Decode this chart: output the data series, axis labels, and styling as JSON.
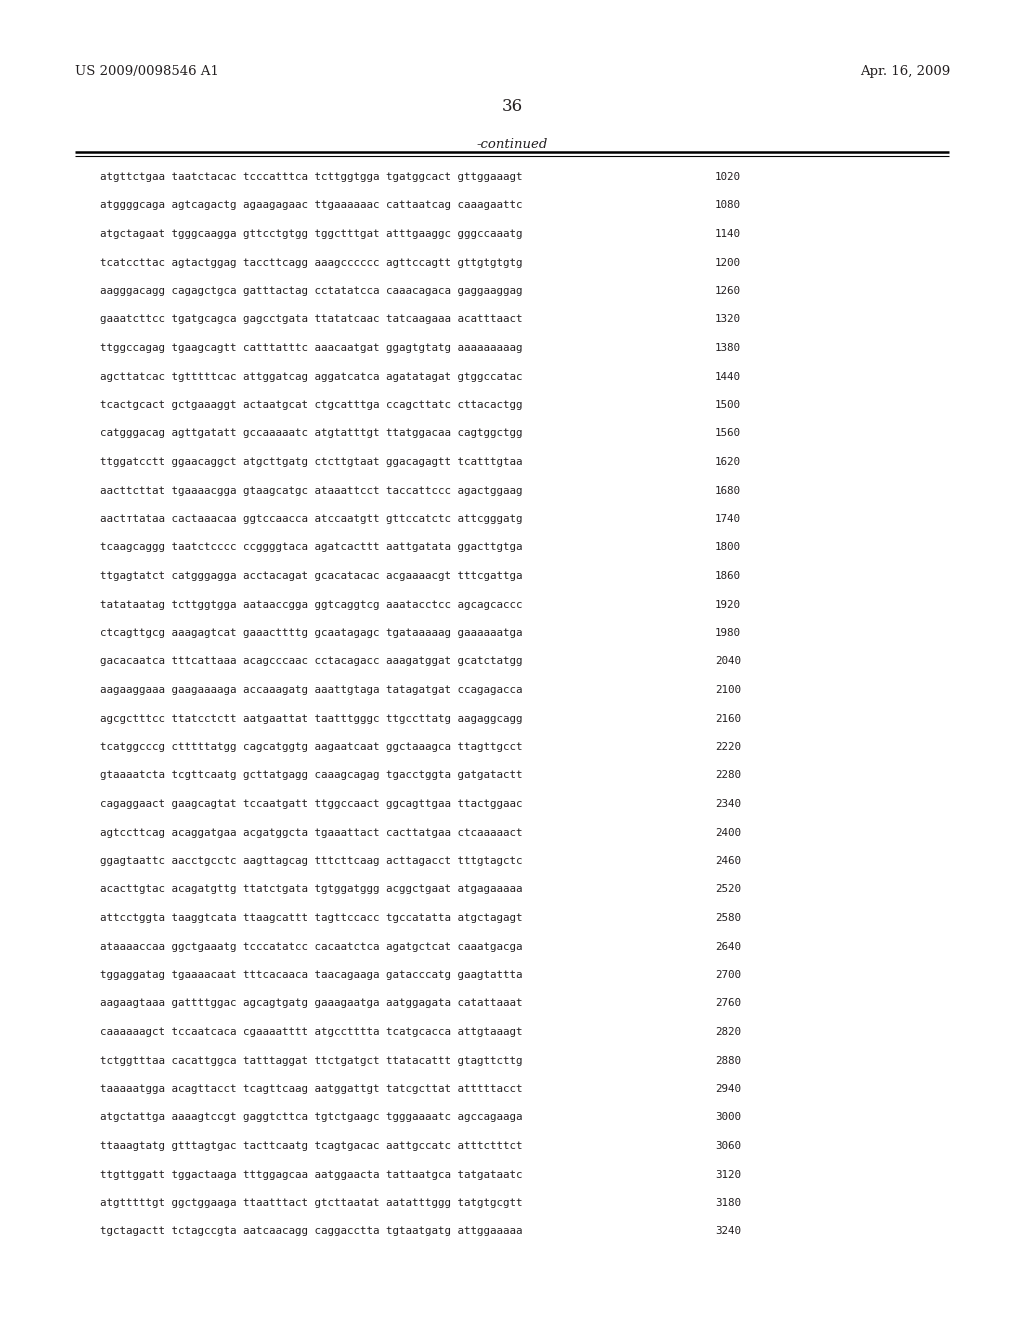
{
  "header_left": "US 2009/0098546 A1",
  "header_right": "Apr. 16, 2009",
  "page_number": "36",
  "continued_label": "-continued",
  "background_color": "#ffffff",
  "text_color": "#231f20",
  "sequence_lines": [
    {
      "seq": "atgttctgaa taatctacac tcccatttca tcttggtgga tgatggcact gttggaaagt",
      "num": "1020"
    },
    {
      "seq": "atggggcaga agtcagactg agaagagaac ttgaaaaaac cattaatcag caaagaattc",
      "num": "1080"
    },
    {
      "seq": "atgctagaat tgggcaagga gttcctgtgg tggctttgat atttgaaggc gggccaaatg",
      "num": "1140"
    },
    {
      "seq": "tcatccttac agtactggag taccttcagg aaagcccccс agttccagtt gttgtgtgtg",
      "num": "1200"
    },
    {
      "seq": "aagggacagg cagagctgca gatttactag cctatatcca caaacagaca gaggaaggag",
      "num": "1260"
    },
    {
      "seq": "gaaatcttcc tgatgcagca gagcctgata ttatatcaac tatcaagaaa acatttaact",
      "num": "1320"
    },
    {
      "seq": "ttggccagag tgaagcagtt catttatttc aaacaatgat ggagtgtatg aaaaaaaaag",
      "num": "1380"
    },
    {
      "seq": "agcttatcac tgtttttcac attggatcag aggatcatca agatatagat gtggccatac",
      "num": "1440"
    },
    {
      "seq": "tcactgcact gctgaaaggt actaatgcat ctgcatttga ccagcttatc cttacactgg",
      "num": "1500"
    },
    {
      "seq": "catgggacag agttgatatt gccaaaaatc atgtatttgt ttatggacaa cagtggctgg",
      "num": "1560"
    },
    {
      "seq": "ttggatcctt ggaacaggct atgcttgatg ctcttgtaat ggacagagtt tcatttgtaa",
      "num": "1620"
    },
    {
      "seq": "aacttcttat tgaaaacgga gtaagcatgc ataaattcct taccattccc agactggaag",
      "num": "1680"
    },
    {
      "seq": "aactтtataa cactaaacaa ggtccaacca atccaatgtt gttccatctc attcgggatg",
      "num": "1740"
    },
    {
      "seq": "tcaagcaggg taatctcccc ccggggtaca agatcacttt aattgatata ggacttgtga",
      "num": "1800"
    },
    {
      "seq": "ttgagtatct catgggagga acctacagat gcacatacac acgaaaacgt tttcgattga",
      "num": "1860"
    },
    {
      "seq": "tatataatag tcttggtgga aataaccgga ggtcaggtcg aaatacctcc agcagcaccc",
      "num": "1920"
    },
    {
      "seq": "ctcagttgcg aaagagtcat gaaacttttg gcaatagagc tgataaaaag gaaaaaatga",
      "num": "1980"
    },
    {
      "seq": "gacacaatca tttcattaaa acagcccaac cctacagacc aaagatggat gcatctatgg",
      "num": "2040"
    },
    {
      "seq": "aagaaggaaa gaagaaaaga accaaagatg aaattgtaga tatagatgat ccagagacca",
      "num": "2100"
    },
    {
      "seq": "agcgctttcc ttatcctctt aatgaattat taatttgggc ttgccttatg aagaggcagg",
      "num": "2160"
    },
    {
      "seq": "tcatggcccg ctttttatgg cagcatggtg aagaatcaat ggctaaagca ttagttgcct",
      "num": "2220"
    },
    {
      "seq": "gtaaaatcta tcgttcaatg gcttatgagg caaagcagag tgacctggta gatgatactt",
      "num": "2280"
    },
    {
      "seq": "cagaggaact gaagcagtat tccaatgatt ttggccaact ggcagttgaa ttactggaac",
      "num": "2340"
    },
    {
      "seq": "agtccttcag acaggatgaa acgatggcta tgaaattact cacttatgaa ctcaaaaact",
      "num": "2400"
    },
    {
      "seq": "ggagtaattc aacctgcctc aagttagcag tttcttcaag acttagacct tttgtagctc",
      "num": "2460"
    },
    {
      "seq": "acacttgtac acagatgttg ttatctgata tgtggatggg acggctgaat atgagaaaaa",
      "num": "2520"
    },
    {
      "seq": "attcctggta taaggtcata ttaagcattt tagttccacc tgccatatta atgctagagt",
      "num": "2580"
    },
    {
      "seq": "ataaaaccaa ggctgaaatg tcccatatcc cacaatctca agatgctcat caaatgacga",
      "num": "2640"
    },
    {
      "seq": "tggaggatag tgaaaacaat tttcacaaca taacagaaga gatacccatg gaagtattta",
      "num": "2700"
    },
    {
      "seq": "aagaagtaaa gattttggac agcagtgatg gaaagaatga aatggagata catattaaat",
      "num": "2760"
    },
    {
      "seq": "caaaaaagct tccaatcaca cgaaaatttt atgcctttta tcatgcacca attgtaaagt",
      "num": "2820"
    },
    {
      "seq": "tctggtttaa cacattggca tatttaggat ttctgatgct ttatacattt gtagttcttg",
      "num": "2880"
    },
    {
      "seq": "taaaaatgga acagttacct tcagttcaag aatggattgt tatcgcttat atttttacct",
      "num": "2940"
    },
    {
      "seq": "atgctattga aaaagtccgt gaggtcttca tgtctgaagc tgggaaaatc agccagaaga",
      "num": "3000"
    },
    {
      "seq": "ttaaagtatg gtttagtgac tacttcaatg tcagtgacac aattgccatc atttctttct",
      "num": "3060"
    },
    {
      "seq": "ttgttggatt tggactaaga tttggagcaa aatggaacta tattaatgca tatgataatc",
      "num": "3120"
    },
    {
      "seq": "atgtttttgt ggctggaaga ttaatttact gtcttaatat aatatttggg tatgtgcgtt",
      "num": "3180"
    },
    {
      "seq": "tgctagactt tctagccgta aatcaacagg caggacctta tgtaatgatg attggaaaaa",
      "num": "3240"
    }
  ]
}
